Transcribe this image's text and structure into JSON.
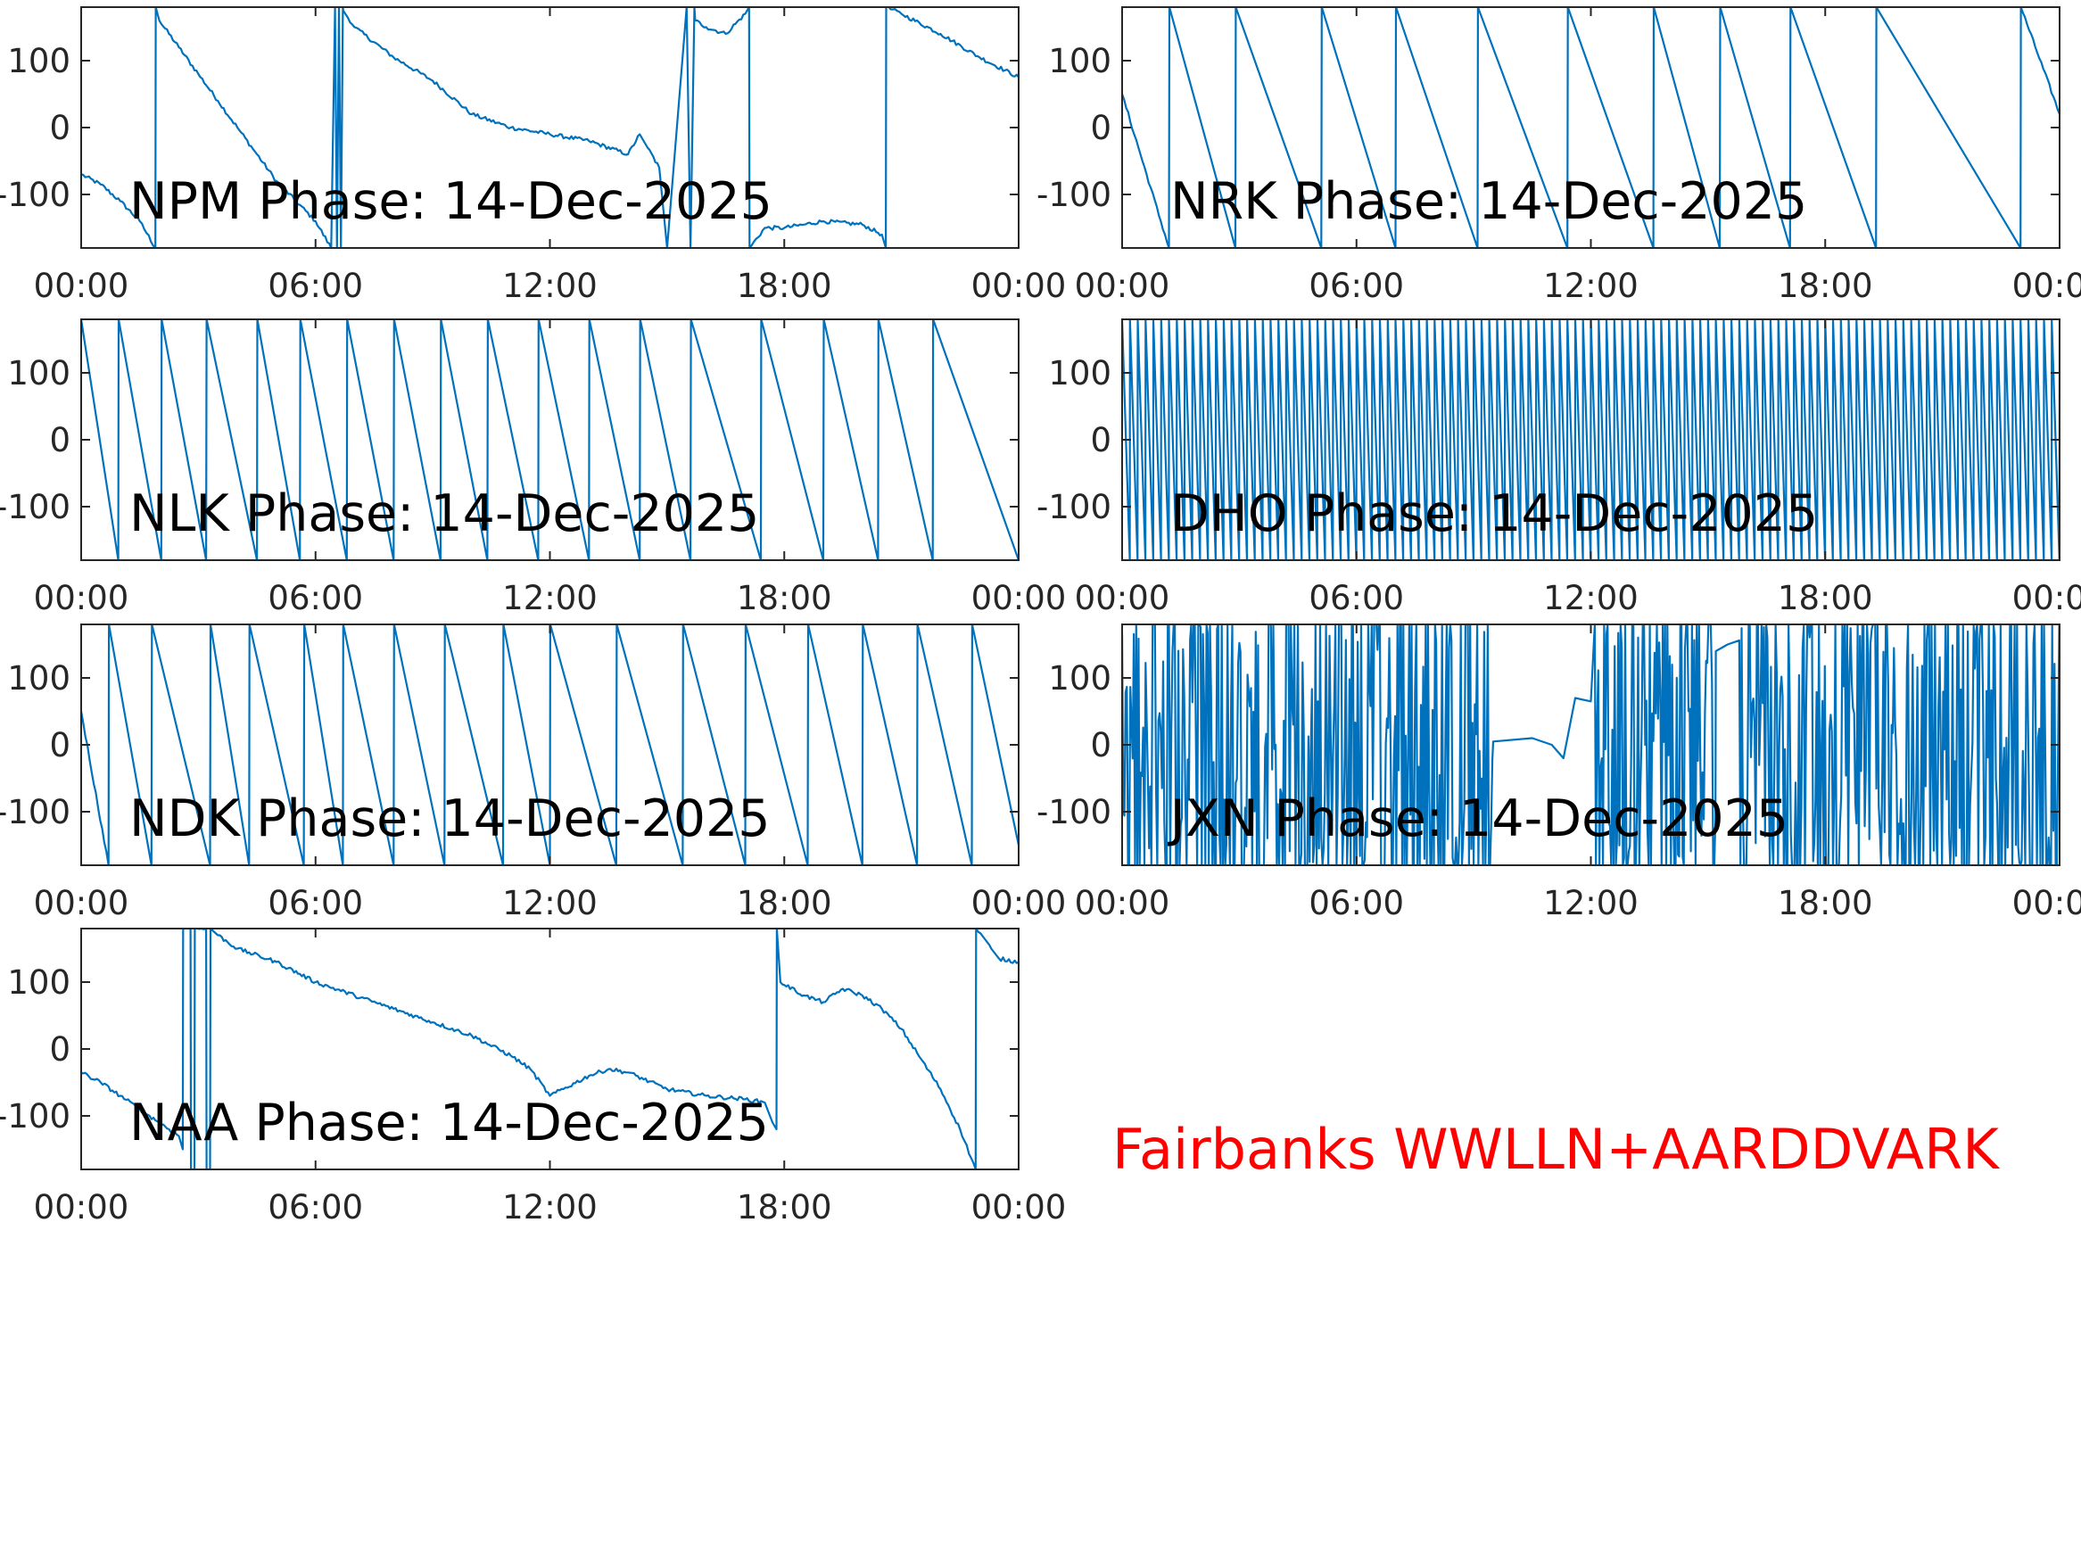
{
  "figure": {
    "footer_text": "Fairbanks WWLLN+AARDDVARK",
    "footer_color": "#ff0000",
    "trace_color": "#0072bd",
    "axis_color": "#262626"
  },
  "chart_data": [
    {
      "type": "line",
      "station": "NPM",
      "title": "NPM Phase: 14-Dec-2025",
      "x_unit": "hours",
      "xlim": [
        0,
        24
      ],
      "ylim": [
        -180,
        180
      ],
      "xticks": [
        0,
        6,
        12,
        18,
        24
      ],
      "xtick_labels": [
        "00:00",
        "06:00",
        "12:00",
        "18:00",
        "00:00"
      ],
      "yticks": [
        -100,
        0,
        100
      ],
      "ytick_labels": [
        "-100",
        "0",
        "100"
      ],
      "pattern": "wrapped-drift",
      "x": [
        0,
        0.5,
        1.0,
        1.5,
        1.9,
        1.91,
        2.0,
        2.5,
        3.0,
        3.5,
        4.0,
        4.5,
        5.0,
        5.5,
        6.0,
        6.4,
        6.5,
        6.55,
        6.6,
        6.65,
        6.7,
        6.71,
        7,
        8,
        9,
        10,
        11,
        12,
        13,
        14,
        14.3,
        14.5,
        14.8,
        15.0,
        15.5,
        15.6,
        15.7,
        15.72,
        16.0,
        16.5,
        17.0,
        17.1,
        17.11,
        17.5,
        18,
        18.5,
        19,
        20,
        20.5,
        20.6,
        20.61,
        21,
        22,
        23,
        24
      ],
      "y": [
        -70,
        -85,
        -110,
        -140,
        -180,
        180,
        160,
        120,
        80,
        40,
        0,
        -40,
        -80,
        -110,
        -140,
        -180,
        180,
        -180,
        180,
        -180,
        180,
        175,
        150,
        105,
        70,
        20,
        0,
        -10,
        -20,
        -40,
        -10,
        -30,
        -60,
        -180,
        180,
        -180,
        180,
        160,
        150,
        140,
        170,
        180,
        -180,
        -150,
        -150,
        -145,
        -140,
        -145,
        -160,
        -180,
        180,
        170,
        140,
        105,
        75
      ]
    },
    {
      "type": "line",
      "station": "NRK",
      "title": "NRK Phase: 14-Dec-2025",
      "x_unit": "hours",
      "xlim": [
        0,
        24
      ],
      "ylim": [
        -180,
        180
      ],
      "xticks": [
        0,
        6,
        12,
        18,
        24
      ],
      "xtick_labels": [
        "00:00",
        "06:00",
        "12:00",
        "18:00",
        "00:00"
      ],
      "yticks": [
        -100,
        0,
        100
      ],
      "ytick_labels": [
        "-100",
        "0",
        "100"
      ],
      "pattern": "sawtooth-wraps",
      "x": [
        0,
        1.2,
        1.21,
        2.9,
        2.91,
        5.1,
        5.11,
        7.0,
        7.01,
        9.1,
        9.11,
        11.4,
        11.41,
        13.6,
        13.61,
        15.3,
        15.31,
        17.1,
        17.11,
        19.3,
        19.31,
        23.0,
        23.01,
        24
      ],
      "y": [
        50,
        -180,
        180,
        -180,
        180,
        -180,
        180,
        -180,
        180,
        -180,
        180,
        -180,
        180,
        -180,
        180,
        -180,
        180,
        -180,
        180,
        -180,
        180,
        -180,
        180,
        20
      ]
    },
    {
      "type": "line",
      "station": "NLK",
      "title": "NLK Phase: 14-Dec-2025",
      "x_unit": "hours",
      "xlim": [
        0,
        24
      ],
      "ylim": [
        -180,
        180
      ],
      "xticks": [
        0,
        6,
        12,
        18,
        24
      ],
      "xtick_labels": [
        "00:00",
        "06:00",
        "12:00",
        "18:00",
        "00:00"
      ],
      "yticks": [
        -100,
        0,
        100
      ],
      "ytick_labels": [
        "-100",
        "0",
        "100"
      ],
      "pattern": "sawtooth-wraps",
      "x": [
        0,
        0.95,
        0.96,
        2.05,
        2.06,
        3.2,
        3.21,
        4.5,
        4.51,
        5.6,
        5.61,
        6.8,
        6.81,
        8.0,
        8.01,
        9.2,
        9.21,
        10.4,
        10.41,
        11.7,
        11.71,
        13.0,
        13.01,
        14.3,
        14.31,
        15.6,
        15.61,
        17.4,
        17.41,
        19.0,
        19.01,
        20.4,
        20.41,
        21.8,
        21.81,
        24
      ],
      "y": [
        180,
        -180,
        180,
        -180,
        180,
        -180,
        180,
        -180,
        180,
        -180,
        180,
        -180,
        180,
        -180,
        180,
        -180,
        180,
        -180,
        180,
        -180,
        180,
        -180,
        180,
        -180,
        180,
        -180,
        180,
        -180,
        180,
        -180,
        180,
        -180,
        180,
        -180,
        180,
        -180
      ]
    },
    {
      "type": "line",
      "station": "DHO",
      "title": "DHO Phase: 14-Dec-2025",
      "x_unit": "hours",
      "xlim": [
        0,
        24
      ],
      "ylim": [
        -180,
        180
      ],
      "xticks": [
        0,
        6,
        12,
        18,
        24
      ],
      "xtick_labels": [
        "00:00",
        "06:00",
        "12:00",
        "18:00",
        "00:00"
      ],
      "yticks": [
        -100,
        0,
        100
      ],
      "ytick_labels": [
        "-100",
        "0",
        "100"
      ],
      "pattern": "rapid-wraps",
      "wrap_period_hours": 0.2
    },
    {
      "type": "line",
      "station": "NDK",
      "title": "NDK Phase: 14-Dec-2025",
      "x_unit": "hours",
      "xlim": [
        0,
        24
      ],
      "ylim": [
        -180,
        180
      ],
      "xticks": [
        0,
        6,
        12,
        18,
        24
      ],
      "xtick_labels": [
        "00:00",
        "06:00",
        "12:00",
        "18:00",
        "00:00"
      ],
      "yticks": [
        -100,
        0,
        100
      ],
      "ytick_labels": [
        "-100",
        "0",
        "100"
      ],
      "pattern": "sawtooth-wraps",
      "x": [
        0,
        0.7,
        0.71,
        1.8,
        1.81,
        3.3,
        3.31,
        4.3,
        4.31,
        5.7,
        5.71,
        6.7,
        6.71,
        8.0,
        8.01,
        9.3,
        9.31,
        10.8,
        10.81,
        12.0,
        12.01,
        13.7,
        13.71,
        15.4,
        15.41,
        17.0,
        17.01,
        18.6,
        18.61,
        20.0,
        20.01,
        21.4,
        21.41,
        22.8,
        22.81,
        24
      ],
      "y": [
        50,
        -180,
        180,
        -180,
        180,
        -180,
        180,
        -180,
        180,
        -180,
        180,
        -180,
        180,
        -180,
        180,
        -180,
        180,
        -180,
        180,
        -180,
        180,
        -180,
        180,
        -180,
        180,
        -180,
        180,
        -180,
        180,
        -180,
        180,
        -180,
        180,
        -180,
        180,
        -150
      ]
    },
    {
      "type": "line",
      "station": "JXN",
      "title": "JXN Phase: 14-Dec-2025",
      "x_unit": "hours",
      "xlim": [
        0,
        24
      ],
      "ylim": [
        -180,
        180
      ],
      "xticks": [
        0,
        6,
        12,
        18,
        24
      ],
      "xtick_labels": [
        "00:00",
        "06:00",
        "12:00",
        "18:00",
        "00:00"
      ],
      "yticks": [
        -100,
        0,
        100
      ],
      "ytick_labels": [
        "-100",
        "0",
        "100"
      ],
      "pattern": "noisy-with-quiet-interval",
      "noisy_intervals": [
        [
          0,
          9.5
        ],
        [
          12.1,
          15.2
        ],
        [
          15.8,
          24
        ]
      ],
      "quiet_segments": [
        {
          "x": [
            9.5,
            10.5,
            11.0,
            11.3,
            11.6,
            12.0
          ],
          "y": [
            5,
            10,
            0,
            -20,
            70,
            65
          ]
        },
        {
          "x": [
            15.2,
            15.5,
            15.8
          ],
          "y": [
            140,
            150,
            145
          ]
        }
      ]
    },
    {
      "type": "line",
      "station": "NAA",
      "title": "NAA Phase: 14-Dec-2025",
      "x_unit": "hours",
      "xlim": [
        0,
        24
      ],
      "ylim": [
        -180,
        180
      ],
      "xticks": [
        0,
        6,
        12,
        18,
        24
      ],
      "xtick_labels": [
        "00:00",
        "06:00",
        "12:00",
        "18:00",
        "00:00"
      ],
      "yticks": [
        -100,
        0,
        100
      ],
      "ytick_labels": [
        "-100",
        "0",
        "100"
      ],
      "pattern": "wrapped-drift",
      "x": [
        0,
        0.5,
        1.0,
        1.5,
        2.0,
        2.5,
        2.6,
        2.61,
        2.8,
        2.81,
        2.9,
        2.91,
        3.2,
        3.21,
        3.3,
        3.31,
        3.5,
        4,
        5,
        6,
        7,
        8,
        9,
        10,
        11,
        11.5,
        12,
        13,
        13.5,
        14,
        15,
        16,
        17,
        17.5,
        17.7,
        17.8,
        17.81,
        17.9,
        18.5,
        19.0,
        19.5,
        20,
        20.5,
        21,
        22,
        22.5,
        22.9,
        22.91,
        23.3,
        23.5,
        24
      ],
      "y": [
        -35,
        -50,
        -70,
        -90,
        -110,
        -130,
        -150,
        180,
        180,
        -180,
        -180,
        180,
        180,
        -180,
        -180,
        180,
        170,
        150,
        130,
        100,
        80,
        60,
        40,
        20,
        -10,
        -30,
        -70,
        -40,
        -30,
        -35,
        -60,
        -70,
        -75,
        -80,
        -110,
        -120,
        180,
        100,
        80,
        70,
        90,
        80,
        60,
        30,
        -60,
        -120,
        -180,
        180,
        150,
        135,
        130
      ]
    }
  ]
}
